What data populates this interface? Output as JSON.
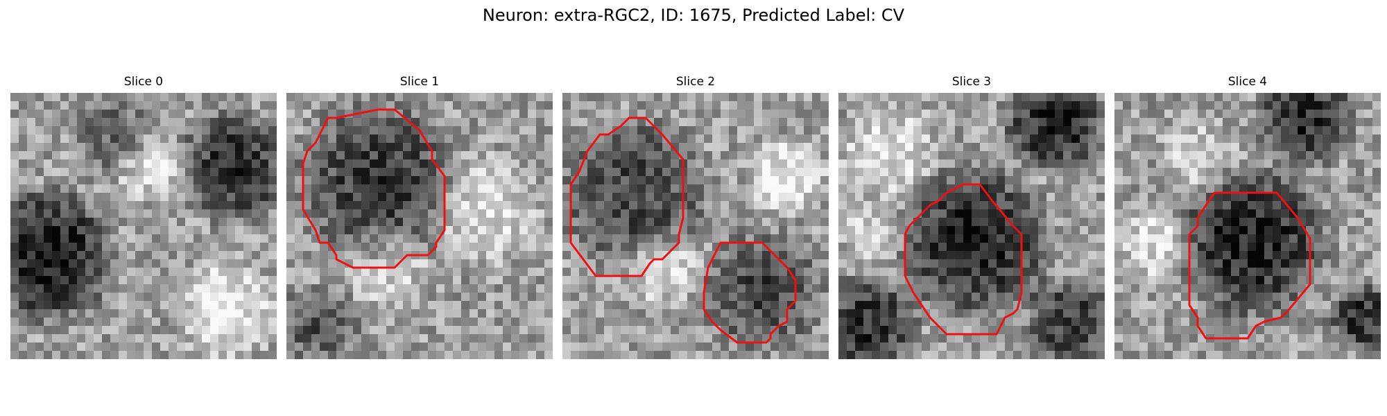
{
  "figure": {
    "title": "Neuron: extra-RGC2, ID: 1675, Predicted Label: CV",
    "contour_color": "#ee1111",
    "grid_size": 32,
    "panels": [
      {
        "label": "Slice 0",
        "seed": 11,
        "dark_regions": [
          {
            "cx": 4.5,
            "cy": 19.5,
            "r": 6.5,
            "strength": 0.55
          },
          {
            "cx": 27.0,
            "cy": 9.0,
            "r": 5.5,
            "strength": 0.45
          },
          {
            "cx": 12.0,
            "cy": 5.0,
            "r": 4.0,
            "strength": 0.25
          }
        ],
        "bright_regions": [
          {
            "cx": 26.0,
            "cy": 26.0,
            "r": 5.0,
            "strength": 0.3
          },
          {
            "cx": 17.0,
            "cy": 9.0,
            "r": 3.5,
            "strength": 0.25
          }
        ],
        "contours": []
      },
      {
        "label": "Slice 1",
        "seed": 23,
        "dark_regions": [
          {
            "cx": 11.0,
            "cy": 10.5,
            "r": 8.0,
            "strength": 0.4
          },
          {
            "cx": 4.0,
            "cy": 28.0,
            "r": 4.0,
            "strength": 0.3
          }
        ],
        "bright_regions": [
          {
            "cx": 24.0,
            "cy": 14.0,
            "r": 5.5,
            "strength": 0.25
          },
          {
            "cx": 12.0,
            "cy": 21.0,
            "r": 4.5,
            "strength": 0.2
          }
        ],
        "contours": [
          [
            [
              6,
              3
            ],
            [
              11,
              2
            ],
            [
              13,
              2
            ],
            [
              16,
              4.5
            ],
            [
              17.5,
              7
            ],
            [
              17.5,
              8
            ],
            [
              19,
              10
            ],
            [
              19,
              16.5
            ],
            [
              18,
              18
            ],
            [
              18,
              18.5
            ],
            [
              17,
              19.5
            ],
            [
              14.5,
              19.5
            ],
            [
              14,
              20
            ],
            [
              13,
              21
            ],
            [
              8,
              21
            ],
            [
              6,
              20
            ],
            [
              6,
              19.5
            ],
            [
              5,
              18
            ],
            [
              4,
              18
            ],
            [
              3.5,
              16.5
            ],
            [
              2,
              14
            ],
            [
              2,
              8.5
            ],
            [
              2.5,
              7
            ],
            [
              3.5,
              6
            ],
            [
              5,
              3
            ]
          ]
        ]
      },
      {
        "label": "Slice 2",
        "seed": 37,
        "dark_regions": [
          {
            "cx": 8.5,
            "cy": 12.0,
            "r": 7.5,
            "strength": 0.35
          },
          {
            "cx": 24.0,
            "cy": 24.0,
            "r": 6.0,
            "strength": 0.35
          }
        ],
        "bright_regions": [
          {
            "cx": 12.0,
            "cy": 21.0,
            "r": 4.0,
            "strength": 0.25
          },
          {
            "cx": 27.0,
            "cy": 10.0,
            "r": 4.0,
            "strength": 0.3
          }
        ],
        "contours": [
          [
            [
              4.5,
              5
            ],
            [
              5.5,
              5
            ],
            [
              7,
              4
            ],
            [
              8,
              3
            ],
            [
              10,
              3
            ],
            [
              11,
              4
            ],
            [
              12,
              5
            ],
            [
              14.5,
              8
            ],
            [
              14.5,
              15
            ],
            [
              14,
              17
            ],
            [
              14,
              18
            ],
            [
              12,
              20
            ],
            [
              11,
              20
            ],
            [
              10.5,
              20.5
            ],
            [
              9.5,
              22
            ],
            [
              4,
              22
            ],
            [
              1,
              18
            ],
            [
              1,
              11
            ],
            [
              2,
              9.5
            ],
            [
              3,
              7
            ]
          ],
          [
            [
              19,
              18
            ],
            [
              24,
              18
            ],
            [
              27,
              21
            ],
            [
              28,
              22.5
            ],
            [
              28,
              25
            ],
            [
              27,
              26
            ],
            [
              27,
              27.5
            ],
            [
              26,
              28
            ],
            [
              25,
              29
            ],
            [
              25,
              29.5
            ],
            [
              24.5,
              30
            ],
            [
              21,
              30
            ],
            [
              19,
              28.5
            ],
            [
              18,
              27.5
            ],
            [
              17,
              26
            ],
            [
              17,
              24
            ],
            [
              17.5,
              21
            ]
          ]
        ]
      },
      {
        "label": "Slice 3",
        "seed": 51,
        "dark_regions": [
          {
            "cx": 16.5,
            "cy": 18.0,
            "r": 7.5,
            "strength": 0.5
          },
          {
            "cx": 26.0,
            "cy": 3.5,
            "r": 5.0,
            "strength": 0.5
          },
          {
            "cx": 3.5,
            "cy": 28.0,
            "r": 5.0,
            "strength": 0.45
          },
          {
            "cx": 28.0,
            "cy": 27.5,
            "r": 4.5,
            "strength": 0.4
          }
        ],
        "bright_regions": [
          {
            "cx": 6.0,
            "cy": 7.0,
            "r": 5.0,
            "strength": 0.25
          },
          {
            "cx": 4.0,
            "cy": 17.0,
            "r": 3.0,
            "strength": 0.25
          }
        ],
        "contours": [
          [
            [
              15,
              11
            ],
            [
              17,
              11
            ],
            [
              18.5,
              13
            ],
            [
              21,
              16
            ],
            [
              22,
              17
            ],
            [
              22,
              24
            ],
            [
              21.5,
              26
            ],
            [
              21,
              26.5
            ],
            [
              20,
              27
            ],
            [
              19,
              29
            ],
            [
              13,
              29
            ],
            [
              11,
              27
            ],
            [
              10,
              25.5
            ],
            [
              9,
              24
            ],
            [
              8,
              22
            ],
            [
              8,
              17
            ],
            [
              8.5,
              16
            ],
            [
              9.5,
              15
            ],
            [
              11,
              13.5
            ],
            [
              12,
              13
            ],
            [
              13,
              12
            ]
          ]
        ]
      },
      {
        "label": "Slice 4",
        "seed": 67,
        "dark_regions": [
          {
            "cx": 16.5,
            "cy": 18.0,
            "r": 7.5,
            "strength": 0.5
          },
          {
            "cx": 23.0,
            "cy": 3.0,
            "r": 5.0,
            "strength": 0.45
          },
          {
            "cx": 30.0,
            "cy": 27.0,
            "r": 3.5,
            "strength": 0.45
          }
        ],
        "bright_regions": [
          {
            "cx": 5.0,
            "cy": 18.0,
            "r": 4.0,
            "strength": 0.25
          },
          {
            "cx": 10.0,
            "cy": 8.0,
            "r": 4.0,
            "strength": 0.2
          }
        ],
        "contours": [
          [
            [
              12,
              12
            ],
            [
              19.5,
              12
            ],
            [
              22,
              15
            ],
            [
              23.5,
              17.5
            ],
            [
              23.5,
              23
            ],
            [
              21,
              26
            ],
            [
              20,
              27
            ],
            [
              18,
              27.5
            ],
            [
              17,
              28
            ],
            [
              16,
              29.5
            ],
            [
              11,
              29.5
            ],
            [
              10,
              28
            ],
            [
              10,
              27
            ],
            [
              9,
              25.5
            ],
            [
              9,
              17
            ],
            [
              10,
              16
            ],
            [
              10,
              15
            ],
            [
              11,
              13.5
            ]
          ]
        ]
      }
    ]
  }
}
